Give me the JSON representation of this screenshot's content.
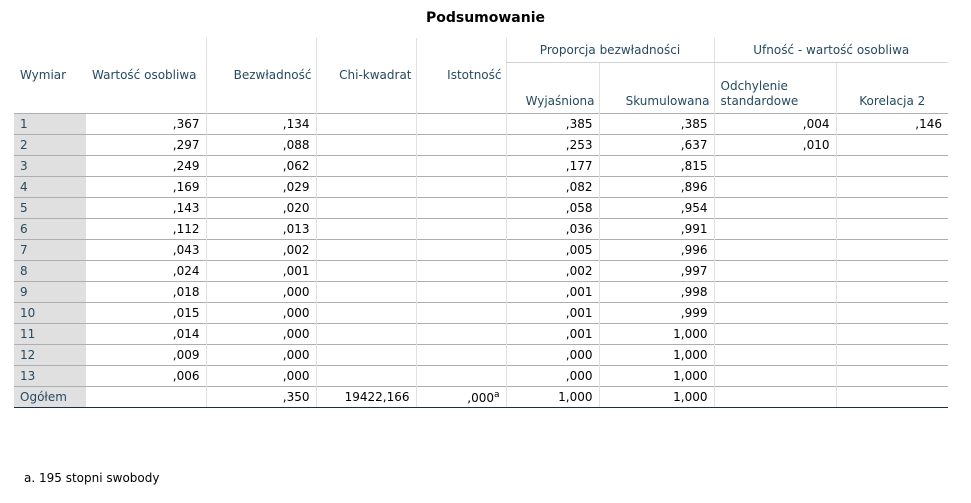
{
  "title": "Podsumowanie",
  "headers": {
    "proportion_group": "Proporcja bezwładności",
    "confidence_group": "Ufność - wartość osobliwa",
    "wymiar": "Wymiar",
    "wartosc": "Wartość osobliwa",
    "bezwladnosc": "Bezwładność",
    "chi": "Chi-kwadrat",
    "istotnosc": "Istotność",
    "wyjasniona": "Wyjaśniona",
    "skumulowana": "Skumulowana",
    "odchylenie": "Odchylenie standardowe",
    "korelacja": "Korelacja 2"
  },
  "rows": [
    {
      "dim": "1",
      "sv": ",367",
      "iner": ",134",
      "chi": "",
      "sig": "",
      "sig_sup": "",
      "expl": ",385",
      "cum": ",385",
      "sd": ",004",
      "corr": ",146"
    },
    {
      "dim": "2",
      "sv": ",297",
      "iner": ",088",
      "chi": "",
      "sig": "",
      "sig_sup": "",
      "expl": ",253",
      "cum": ",637",
      "sd": ",010",
      "corr": ""
    },
    {
      "dim": "3",
      "sv": ",249",
      "iner": ",062",
      "chi": "",
      "sig": "",
      "sig_sup": "",
      "expl": ",177",
      "cum": ",815",
      "sd": "",
      "corr": ""
    },
    {
      "dim": "4",
      "sv": ",169",
      "iner": ",029",
      "chi": "",
      "sig": "",
      "sig_sup": "",
      "expl": ",082",
      "cum": ",896",
      "sd": "",
      "corr": ""
    },
    {
      "dim": "5",
      "sv": ",143",
      "iner": ",020",
      "chi": "",
      "sig": "",
      "sig_sup": "",
      "expl": ",058",
      "cum": ",954",
      "sd": "",
      "corr": ""
    },
    {
      "dim": "6",
      "sv": ",112",
      "iner": ",013",
      "chi": "",
      "sig": "",
      "sig_sup": "",
      "expl": ",036",
      "cum": ",991",
      "sd": "",
      "corr": ""
    },
    {
      "dim": "7",
      "sv": ",043",
      "iner": ",002",
      "chi": "",
      "sig": "",
      "sig_sup": "",
      "expl": ",005",
      "cum": ",996",
      "sd": "",
      "corr": ""
    },
    {
      "dim": "8",
      "sv": ",024",
      "iner": ",001",
      "chi": "",
      "sig": "",
      "sig_sup": "",
      "expl": ",002",
      "cum": ",997",
      "sd": "",
      "corr": ""
    },
    {
      "dim": "9",
      "sv": ",018",
      "iner": ",000",
      "chi": "",
      "sig": "",
      "sig_sup": "",
      "expl": ",001",
      "cum": ",998",
      "sd": "",
      "corr": ""
    },
    {
      "dim": "10",
      "sv": ",015",
      "iner": ",000",
      "chi": "",
      "sig": "",
      "sig_sup": "",
      "expl": ",001",
      "cum": ",999",
      "sd": "",
      "corr": ""
    },
    {
      "dim": "11",
      "sv": ",014",
      "iner": ",000",
      "chi": "",
      "sig": "",
      "sig_sup": "",
      "expl": ",001",
      "cum": "1,000",
      "sd": "",
      "corr": ""
    },
    {
      "dim": "12",
      "sv": ",009",
      "iner": ",000",
      "chi": "",
      "sig": "",
      "sig_sup": "",
      "expl": ",000",
      "cum": "1,000",
      "sd": "",
      "corr": ""
    },
    {
      "dim": "13",
      "sv": ",006",
      "iner": ",000",
      "chi": "",
      "sig": "",
      "sig_sup": "",
      "expl": ",000",
      "cum": "1,000",
      "sd": "",
      "corr": ""
    },
    {
      "dim": "Ogółem",
      "sv": "",
      "iner": ",350",
      "chi": "19422,166",
      "sig": ",000",
      "sig_sup": "a",
      "expl": "1,000",
      "cum": "1,000",
      "sd": "",
      "corr": ""
    }
  ],
  "footnote": "a. 195 stopni swobody"
}
